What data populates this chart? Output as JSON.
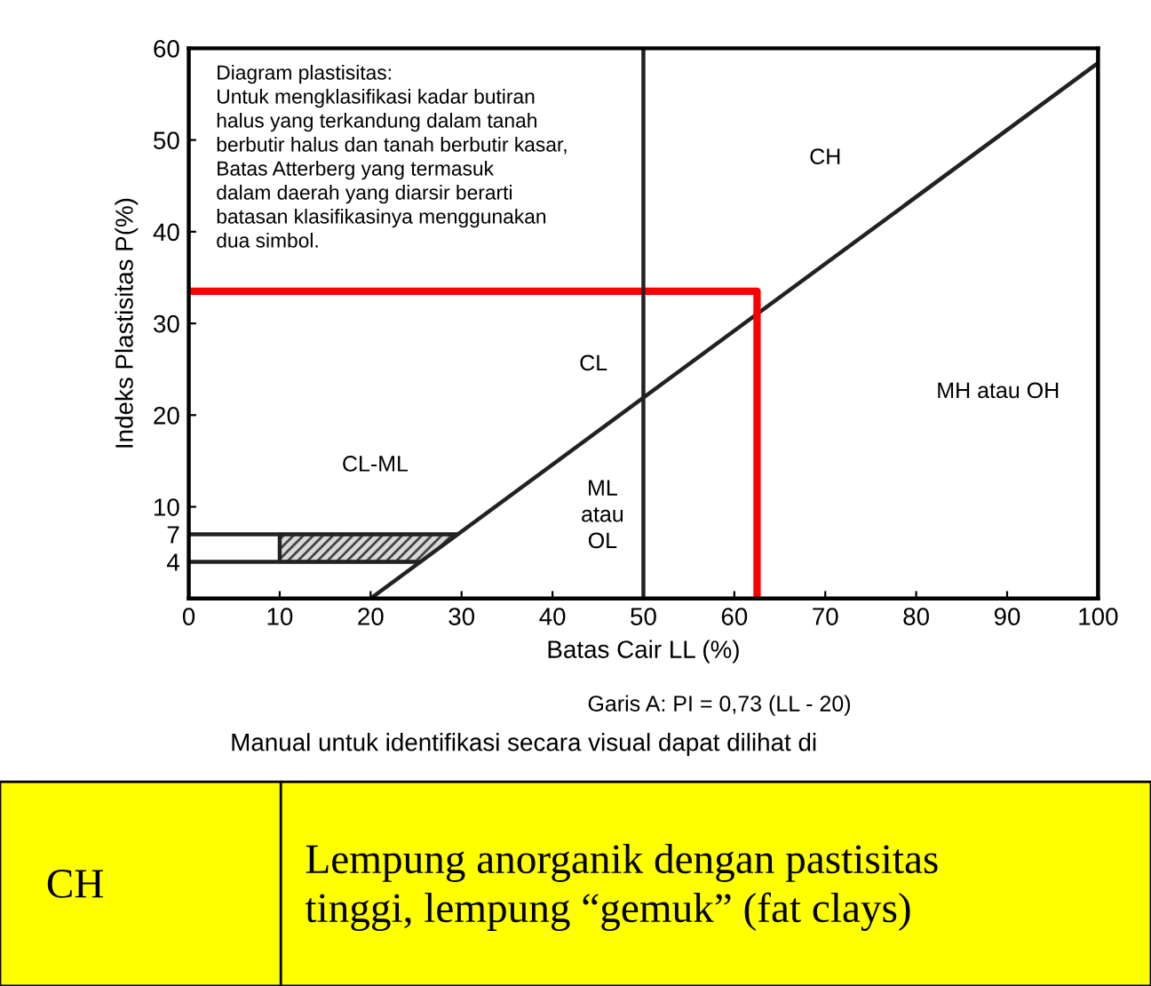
{
  "chart_data": {
    "type": "line",
    "xlabel": "Batas Cair LL (%)",
    "ylabel": "Indeks Plastisitas P(%)",
    "xlim": [
      0,
      100
    ],
    "ylim": [
      0,
      60
    ],
    "xticks": [
      0,
      10,
      20,
      30,
      40,
      50,
      60,
      70,
      80,
      90,
      100
    ],
    "yticks": [
      4,
      7,
      10,
      20,
      30,
      40,
      50,
      60
    ],
    "grid": false,
    "legend": false,
    "marker": "none",
    "line_style": "solid",
    "series": [
      {
        "color": "#222222",
        "x": [
          20,
          100
        ],
        "values": [
          0,
          58.4
        ]
      },
      {
        "color": "#222222",
        "x": [
          0,
          25.48
        ],
        "values": [
          4,
          4
        ]
      },
      {
        "color": "#222222",
        "x": [
          0,
          29.59
        ],
        "values": [
          7,
          7
        ]
      },
      {
        "color": "#222222",
        "x": [
          10,
          10
        ],
        "values": [
          4,
          7
        ]
      },
      {
        "type": "area",
        "color": "#444444",
        "x": [
          10,
          25.48,
          29.59,
          10
        ],
        "values": [
          4,
          4,
          7,
          7
        ]
      },
      {
        "color": "#ff0000",
        "x": [
          0,
          62.5,
          62.5
        ],
        "values": [
          33.5,
          33.5,
          0
        ]
      }
    ],
    "ref_lines": [
      {
        "axis": "x",
        "value": 50,
        "color": "#222222"
      }
    ],
    "annotations": [
      "Diagram plastisitas:\nUntuk mengklasifikasi kadar butiran\nhalus yang terkandung dalam tanah\nberbutir halus dan tanah berbutir kasar,\nBatas Atterberg yang termasuk\ndalam daerah yang diarsir berarti\nbatasan klasifikasinya menggunakan\ndua simbol.",
      "Garis A: PI = 0,73 (LL - 20)",
      "Manual untuk identifikasi secara visual dapat dilihat di",
      "CH",
      "Lempung anorganik dengan pastisitas\ntinggi, lempung “gemuk” (fat clays)",
      "CH",
      "CL",
      "MH atau OH",
      "CL-ML",
      "ML\natau\nOL"
    ]
  }
}
